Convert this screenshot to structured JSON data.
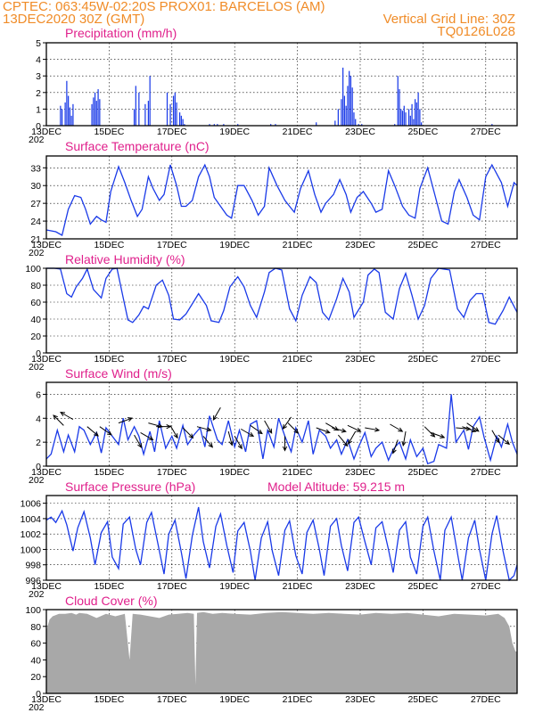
{
  "header": {
    "line1_left": "CPTEC:   063:45W-02:20S   PROX01: BARCELOS (AM)",
    "line2_left": "13DEC2020 30Z (GMT)",
    "line2_right": "Vertical Grid Line: 30Z",
    "line3_right": "TQ0126L028",
    "colors": {
      "header": "#f08c28",
      "panel_title": "#e0208c",
      "line": "#1a3ae8",
      "bars": "#1a3ae8",
      "cloud": "#a8a8a8"
    }
  },
  "date_labels": [
    "13DEC",
    "15DEC",
    "17DEC",
    "19DEC",
    "21DEC",
    "23DEC",
    "25DEC",
    "27DEC"
  ],
  "year_fragment": "202",
  "chart_data": [
    {
      "type": "bar",
      "title": "Precipitation (mm/h)",
      "ylim": [
        0,
        5
      ],
      "yticks": [
        0,
        1,
        2,
        3,
        4,
        5
      ],
      "x_range_days": [
        0,
        15
      ],
      "bars": [
        [
          0.45,
          1.2
        ],
        [
          0.5,
          1.0
        ],
        [
          0.6,
          1.4
        ],
        [
          0.65,
          2.7
        ],
        [
          0.7,
          1.8
        ],
        [
          0.75,
          1.1
        ],
        [
          0.8,
          0.6
        ],
        [
          0.85,
          1.3
        ],
        [
          1.45,
          1.3
        ],
        [
          1.5,
          1.7
        ],
        [
          1.55,
          2.0
        ],
        [
          1.6,
          1.5
        ],
        [
          1.65,
          2.2
        ],
        [
          1.7,
          1.6
        ],
        [
          2.8,
          1.0
        ],
        [
          2.85,
          2.4
        ],
        [
          2.95,
          2.0
        ],
        [
          3.15,
          1.3
        ],
        [
          3.25,
          1.5
        ],
        [
          3.3,
          3.0
        ],
        [
          3.85,
          2.0
        ],
        [
          3.95,
          1.3
        ],
        [
          4.05,
          1.8
        ],
        [
          4.1,
          2.0
        ],
        [
          4.15,
          1.4
        ],
        [
          4.25,
          0.8
        ],
        [
          4.3,
          0.6
        ],
        [
          4.35,
          0.4
        ],
        [
          4.4,
          0.1
        ],
        [
          5.2,
          0.1
        ],
        [
          5.35,
          0.1
        ],
        [
          5.45,
          0.1
        ],
        [
          5.65,
          0.1
        ],
        [
          6.1,
          0.1
        ],
        [
          7.15,
          0.1
        ],
        [
          7.3,
          0.1
        ],
        [
          8.6,
          0.2
        ],
        [
          9.2,
          0.3
        ],
        [
          9.3,
          1.0
        ],
        [
          9.4,
          1.6
        ],
        [
          9.45,
          3.5
        ],
        [
          9.5,
          1.8
        ],
        [
          9.55,
          1.2
        ],
        [
          9.6,
          2.4
        ],
        [
          9.65,
          3.3
        ],
        [
          9.7,
          3.0
        ],
        [
          9.75,
          2.3
        ],
        [
          9.8,
          0.8
        ],
        [
          9.85,
          0.4
        ],
        [
          9.95,
          0.1
        ],
        [
          10.05,
          0.1
        ],
        [
          11.1,
          0.1
        ],
        [
          11.2,
          3.0
        ],
        [
          11.25,
          2.2
        ],
        [
          11.3,
          1.0
        ],
        [
          11.35,
          0.9
        ],
        [
          11.4,
          1.2
        ],
        [
          11.45,
          0.8
        ],
        [
          11.55,
          1.0
        ],
        [
          11.6,
          0.6
        ],
        [
          11.65,
          1.3
        ],
        [
          11.7,
          0.4
        ],
        [
          11.75,
          1.6
        ],
        [
          11.8,
          1.4
        ],
        [
          11.85,
          2.0
        ],
        [
          11.9,
          1.0
        ],
        [
          11.95,
          0.2
        ],
        [
          14.2,
          0.1
        ]
      ]
    },
    {
      "type": "line",
      "title": "Surface Temperature (nC)",
      "ylim": [
        21,
        35
      ],
      "yticks": [
        21,
        24,
        27,
        30,
        33
      ],
      "x_range_days": [
        0,
        15
      ],
      "x": [
        0,
        0.3,
        0.5,
        0.7,
        0.9,
        1.1,
        1.25,
        1.4,
        1.6,
        1.75,
        1.9,
        2.05,
        2.3,
        2.5,
        2.7,
        2.9,
        3.05,
        3.25,
        3.4,
        3.6,
        3.75,
        3.95,
        4.15,
        4.3,
        4.45,
        4.65,
        4.85,
        5.05,
        5.2,
        5.35,
        5.55,
        5.75,
        5.9,
        6.1,
        6.3,
        6.55,
        6.75,
        6.95,
        7.1,
        7.35,
        7.6,
        7.75,
        7.9,
        8.1,
        8.35,
        8.55,
        8.75,
        8.9,
        9.15,
        9.35,
        9.55,
        9.7,
        9.9,
        10.1,
        10.35,
        10.5,
        10.7,
        10.9,
        11.1,
        11.35,
        11.55,
        11.75,
        11.9,
        12.15,
        12.4,
        12.6,
        12.8,
        13.0,
        13.15,
        13.4,
        13.6,
        13.8,
        14.0,
        14.2,
        14.5,
        14.7,
        14.9,
        15.0
      ],
      "y": [
        22.5,
        22.2,
        21.6,
        26.0,
        28.3,
        28.0,
        26.0,
        23.5,
        24.8,
        24.2,
        23.8,
        29.0,
        33.2,
        30.5,
        27.5,
        24.8,
        26.0,
        31.5,
        29.5,
        27.5,
        28.5,
        33.5,
        30.0,
        26.5,
        26.5,
        27.5,
        31.5,
        33.5,
        31.5,
        28.0,
        26.5,
        25.0,
        24.5,
        30.0,
        30.0,
        27.5,
        25.0,
        26.5,
        33.0,
        30.0,
        27.5,
        26.5,
        25.5,
        29.5,
        32.5,
        28.5,
        25.5,
        27.0,
        28.5,
        31.0,
        28.5,
        25.5,
        28.0,
        29.0,
        27.0,
        25.5,
        26.0,
        32.5,
        30.0,
        26.5,
        25.0,
        24.5,
        29.5,
        33.0,
        28.0,
        24.0,
        23.5,
        29.0,
        31.0,
        28.0,
        25.0,
        24.2,
        31.5,
        33.5,
        30.5,
        26.5,
        30.5,
        30.0
      ]
    },
    {
      "type": "line",
      "title": "Relative Humidity (%)",
      "ylim": [
        0,
        100
      ],
      "yticks": [
        0,
        20,
        40,
        60,
        80,
        100
      ],
      "x_range_days": [
        0,
        15
      ],
      "x": [
        0,
        0.25,
        0.45,
        0.65,
        0.8,
        0.95,
        1.15,
        1.3,
        1.5,
        1.75,
        1.9,
        2.1,
        2.25,
        2.45,
        2.6,
        2.75,
        2.95,
        3.1,
        3.25,
        3.5,
        3.7,
        3.9,
        4.05,
        4.25,
        4.45,
        4.65,
        4.85,
        5.1,
        5.25,
        5.5,
        5.65,
        5.85,
        6.1,
        6.3,
        6.5,
        6.7,
        6.95,
        7.1,
        7.3,
        7.5,
        7.75,
        7.95,
        8.15,
        8.4,
        8.6,
        8.8,
        9.0,
        9.25,
        9.45,
        9.65,
        9.8,
        10.1,
        10.25,
        10.45,
        10.6,
        10.8,
        11.05,
        11.25,
        11.45,
        11.65,
        11.85,
        12.05,
        12.25,
        12.5,
        12.65,
        12.85,
        13.1,
        13.3,
        13.5,
        13.7,
        13.9,
        14.1,
        14.3,
        14.55,
        14.75,
        15.0
      ],
      "y": [
        100,
        100,
        99,
        70,
        66,
        78,
        88,
        99,
        75,
        65,
        88,
        99,
        100,
        65,
        39,
        36,
        45,
        55,
        52,
        80,
        86,
        68,
        40,
        39,
        46,
        58,
        70,
        56,
        38,
        36,
        50,
        78,
        90,
        78,
        56,
        42,
        72,
        95,
        100,
        98,
        52,
        38,
        68,
        90,
        83,
        48,
        39,
        64,
        88,
        72,
        42,
        60,
        92,
        99,
        95,
        48,
        40,
        76,
        94,
        68,
        40,
        56,
        88,
        100,
        99,
        98,
        52,
        42,
        62,
        70,
        70,
        36,
        34,
        50,
        66,
        48
      ],
      "extra": [
        [
          15.0,
          52
        ]
      ]
    },
    {
      "type": "line",
      "title": "Surface Wind (m/s)",
      "ylim": [
        0,
        7
      ],
      "yticks": [
        0,
        2,
        4,
        6
      ],
      "x_range_days": [
        0,
        15
      ],
      "x": [
        0,
        0.15,
        0.35,
        0.55,
        0.7,
        0.9,
        1.05,
        1.2,
        1.4,
        1.6,
        1.75,
        1.9,
        2.1,
        2.3,
        2.45,
        2.6,
        2.8,
        2.95,
        3.1,
        3.3,
        3.45,
        3.6,
        3.8,
        4.0,
        4.15,
        4.35,
        4.5,
        4.7,
        4.9,
        5.05,
        5.2,
        5.45,
        5.6,
        5.8,
        6.0,
        6.15,
        6.35,
        6.5,
        6.7,
        6.9,
        7.05,
        7.25,
        7.4,
        7.6,
        7.8,
        7.95,
        8.15,
        8.35,
        8.5,
        8.7,
        8.9,
        9.05,
        9.25,
        9.4,
        9.6,
        9.8,
        9.95,
        10.15,
        10.35,
        10.5,
        10.7,
        10.9,
        11.05,
        11.25,
        11.45,
        11.6,
        11.8,
        12.0,
        12.15,
        12.35,
        12.5,
        12.75,
        12.9,
        13.05,
        13.3,
        13.45,
        13.6,
        13.8,
        13.95,
        14.15,
        14.35,
        14.5,
        14.7,
        14.85,
        15.0
      ],
      "y": [
        0.6,
        1.0,
        3.0,
        1.2,
        2.6,
        1.2,
        3.3,
        3.0,
        1.8,
        2.8,
        1.1,
        3.2,
        2.5,
        1.8,
        4.0,
        2.2,
        3.3,
        2.5,
        1.0,
        2.9,
        1.2,
        3.8,
        1.5,
        2.5,
        1.5,
        3.4,
        1.8,
        2.6,
        3.2,
        1.6,
        4.2,
        2.2,
        1.8,
        3.8,
        1.6,
        3.0,
        1.2,
        3.5,
        3.8,
        0.6,
        3.0,
        1.6,
        4.0,
        2.5,
        1.2,
        3.2,
        2.0,
        3.8,
        1.0,
        3.0,
        2.5,
        1.5,
        2.2,
        1.0,
        2.2,
        0.6,
        1.6,
        2.8,
        0.8,
        1.5,
        2.0,
        0.5,
        1.4,
        2.0,
        0.6,
        2.2,
        0.8,
        1.5,
        0.2,
        0.4,
        1.8,
        1.5,
        6.0,
        2.0,
        3.0,
        1.4,
        3.3,
        4.1,
        2.4,
        0.5,
        2.5,
        1.6,
        3.5,
        2.0,
        1.0
      ],
      "arrows": [
        [
          0.55,
          3.4,
          135
        ],
        [
          0.85,
          3.9,
          150
        ],
        [
          1.3,
          3.3,
          -40
        ],
        [
          1.7,
          3.3,
          -35
        ],
        [
          2.3,
          3.6,
          20
        ],
        [
          2.8,
          2.6,
          -60
        ],
        [
          3.0,
          2.8,
          -30
        ],
        [
          3.5,
          3.3,
          0
        ],
        [
          3.25,
          3.6,
          -15
        ],
        [
          3.95,
          3.4,
          -60
        ],
        [
          4.35,
          3.2,
          -45
        ],
        [
          4.8,
          3.3,
          -15
        ],
        [
          5.0,
          2.5,
          -50
        ],
        [
          5.55,
          4.9,
          -120
        ],
        [
          5.8,
          2.9,
          -75
        ],
        [
          6.0,
          2.5,
          -60
        ],
        [
          6.2,
          3.1,
          -30
        ],
        [
          6.5,
          3.4,
          -35
        ],
        [
          6.95,
          3.8,
          -60
        ],
        [
          7.7,
          3.6,
          -45
        ],
        [
          7.6,
          2.5,
          -90
        ],
        [
          7.8,
          4.1,
          -125
        ],
        [
          8.6,
          3.2,
          -20
        ],
        [
          8.9,
          3.6,
          -30
        ],
        [
          9.1,
          3.2,
          -15
        ],
        [
          9.3,
          2.6,
          -50
        ],
        [
          9.6,
          3.4,
          -25
        ],
        [
          9.85,
          2.9,
          -120
        ],
        [
          10.15,
          3.2,
          -10
        ],
        [
          10.95,
          3.5,
          -30
        ],
        [
          11.2,
          2.2,
          -110
        ],
        [
          11.45,
          2.9,
          -100
        ],
        [
          12.05,
          3.3,
          -45
        ],
        [
          12.25,
          2.8,
          -20
        ],
        [
          13.05,
          3.2,
          -5
        ],
        [
          13.25,
          3.3,
          -20
        ],
        [
          13.4,
          3.6,
          -35
        ],
        [
          14.2,
          3.0,
          -60
        ],
        [
          14.4,
          2.6,
          -40
        ]
      ]
    },
    {
      "type": "line",
      "title": "Surface Pressure (hPa)",
      "annotation": "Model Altitude: 59.215 m",
      "ylim": [
        996,
        1007
      ],
      "yticks": [
        996,
        998,
        1000,
        1002,
        1004,
        1006
      ],
      "x_range_days": [
        0,
        15
      ],
      "x": [
        0,
        0.15,
        0.3,
        0.5,
        0.65,
        0.85,
        1.0,
        1.2,
        1.4,
        1.55,
        1.75,
        1.95,
        2.1,
        2.3,
        2.45,
        2.65,
        2.85,
        3.0,
        3.2,
        3.35,
        3.55,
        3.75,
        3.9,
        4.1,
        4.3,
        4.45,
        4.65,
        4.85,
        5.0,
        5.2,
        5.4,
        5.55,
        5.75,
        5.95,
        6.1,
        6.3,
        6.5,
        6.65,
        6.85,
        7.05,
        7.2,
        7.4,
        7.6,
        7.75,
        7.95,
        8.15,
        8.3,
        8.5,
        8.7,
        8.85,
        9.05,
        9.25,
        9.4,
        9.6,
        9.8,
        9.95,
        10.15,
        10.35,
        10.5,
        10.7,
        10.9,
        11.05,
        11.25,
        11.45,
        11.6,
        11.8,
        12.0,
        12.15,
        12.35,
        12.55,
        12.7,
        12.9,
        13.1,
        13.25,
        13.45,
        13.65,
        13.8,
        14.0,
        14.2,
        14.35,
        14.55,
        14.75,
        14.9,
        15.0
      ],
      "y": [
        1003.8,
        1004.2,
        1003.5,
        1005.0,
        1003.2,
        999.8,
        1002.8,
        1004.9,
        1001.5,
        998.0,
        1002.2,
        1003.6,
        999.0,
        997.5,
        1003.3,
        1004.2,
        1000.0,
        998.0,
        1003.5,
        1004.8,
        1000.8,
        996.8,
        1002.0,
        1003.8,
        999.6,
        996.2,
        1001.8,
        1005.5,
        1001.0,
        997.6,
        1003.0,
        1004.6,
        1000.5,
        997.0,
        1002.4,
        1003.5,
        999.8,
        996.0,
        1001.5,
        1003.6,
        999.8,
        996.6,
        1002.5,
        1003.7,
        999.2,
        996.8,
        1002.2,
        1003.8,
        1000.0,
        996.6,
        1003.0,
        1004.0,
        1000.5,
        997.2,
        1003.5,
        1004.2,
        1001.0,
        998.0,
        1002.8,
        1003.6,
        1000.0,
        997.0,
        1002.5,
        1003.6,
        999.0,
        996.8,
        1003.0,
        1004.2,
        999.8,
        996.0,
        1002.5,
        1004.2,
        999.5,
        996.0,
        1001.5,
        1003.8,
        1000.0,
        995.8,
        1002.0,
        1004.4,
        999.8,
        995.8,
        996.6,
        998.0
      ]
    },
    {
      "type": "area",
      "title": "Cloud Cover (%)",
      "ylim": [
        0,
        100
      ],
      "yticks": [
        0,
        20,
        40,
        60,
        80,
        100
      ],
      "x_range_days": [
        0,
        15
      ],
      "x": [
        0,
        0.1,
        0.2,
        0.4,
        0.6,
        0.8,
        0.95,
        1.05,
        1.3,
        1.6,
        1.9,
        2.2,
        2.5,
        2.65,
        2.75,
        3.0,
        3.3,
        3.6,
        3.9,
        4.2,
        4.5,
        4.7,
        4.75,
        4.8,
        5.0,
        5.3,
        5.6,
        6.0,
        6.5,
        7.0,
        7.5,
        8.0,
        8.5,
        9.0,
        9.5,
        10.0,
        10.5,
        11.0,
        11.5,
        12.0,
        12.5,
        13.0,
        13.5,
        14.0,
        14.4,
        14.6,
        14.75,
        14.85,
        14.95,
        15.0
      ],
      "y": [
        75,
        88,
        92,
        95,
        95,
        96,
        94,
        96,
        95,
        90,
        95,
        92,
        95,
        40,
        95,
        94,
        92,
        90,
        94,
        95,
        96,
        95,
        10,
        96,
        97,
        95,
        96,
        95,
        94,
        96,
        97,
        96,
        95,
        96,
        95,
        94,
        96,
        95,
        96,
        94,
        92,
        95,
        94,
        93,
        95,
        90,
        80,
        60,
        50,
        50
      ]
    }
  ]
}
